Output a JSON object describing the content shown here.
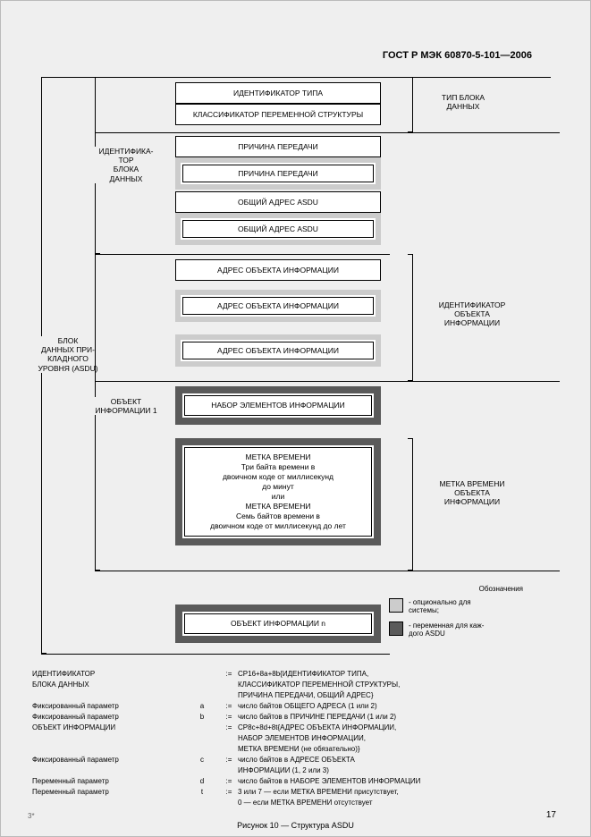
{
  "header": "ГОСТ Р МЭК 60870-5-101—2006",
  "labels": {
    "asdu": "БЛОК\nДАННЫХ ПРИ-\nКЛАДНОГО\nУРОВНЯ (ASDU)",
    "ident": "ИДЕНТИФИКА-\nТОР\nБЛОКА\nДАННЫХ",
    "obj1": "ОБЪЕКТ\nИНФОРМАЦИИ 1",
    "typeblock": "ТИП БЛОКА\nДАННЫХ",
    "identobj": "ИДЕНТИФИКАТОР\nОБЪЕКТА\nИНФОРМАЦИИ",
    "timelabel": "МЕТКА ВРЕМЕНИ\nОБЪЕКТА\nИНФОРМАЦИИ"
  },
  "boxes": {
    "b1": "ИДЕНТИФИКАТОР ТИПА",
    "b2": "КЛАССИФИКАТОР\nПЕРЕМЕННОЙ СТРУКТУРЫ",
    "b3": "ПРИЧИНА ПЕРЕДАЧИ",
    "b3o": "ПРИЧИНА ПЕРЕДАЧИ",
    "b4": "ОБЩИЙ АДРЕС ASDU",
    "b4o": "ОБЩИЙ АДРЕС ASDU",
    "b5": "АДРЕС ОБЪЕКТА\nИНФОРМАЦИИ",
    "b5o1": "АДРЕС ОБЪЕКТА\nИНФОРМАЦИИ",
    "b5o2": "АДРЕС ОБЪЕКТА\nИНФОРМАЦИИ",
    "b6": "НАБОР ЭЛЕМЕНТОВ\nИНФОРМАЦИИ",
    "b7": "МЕТКА ВРЕМЕНИ\nТри байта времени в\nдвоичном коде от миллисекунд\nдо минут\nили\nМЕТКА ВРЕМЕНИ\nСемь байтов времени в\nдвоичном коде от миллисекунд до лет",
    "b8": "ОБЪЕКТ ИНФОРМАЦИИ n"
  },
  "legend": {
    "title": "Обозначения",
    "opt": "- опционально для\n  системы;",
    "var": "- переменная для каж-\n  дого ASDU",
    "colors": {
      "opt": "#cccccc",
      "var": "#5a5a5a"
    }
  },
  "defs": [
    {
      "term": "ИДЕНТИФИКАТОР",
      "sym": "",
      "eq": ":=",
      "desc": "CP16+8a+8b{ИДЕНТИФИКАТОР ТИПА,"
    },
    {
      "term": "БЛОКА ДАННЫХ",
      "sym": "",
      "eq": "",
      "desc": "КЛАССИФИКАТОР ПЕРЕМЕННОЙ СТРУКТУРЫ,"
    },
    {
      "term": "",
      "sym": "",
      "eq": "",
      "desc": "ПРИЧИНА ПЕРЕДАЧИ, ОБЩИЙ АДРЕС}"
    },
    {
      "term": "Фиксированный параметр",
      "sym": "a",
      "eq": ":=",
      "desc": "число байтов ОБЩЕГО АДРЕСА (1 или 2)"
    },
    {
      "term": "Фиксированный параметр",
      "sym": "b",
      "eq": ":=",
      "desc": "число байтов в ПРИЧИНЕ ПЕРЕДАЧИ (1 или 2)"
    },
    {
      "term": "ОБЪЕКТ ИНФОРМАЦИИ",
      "sym": "",
      "eq": ":=",
      "desc": "CP8c+8d+8t{АДРЕС ОБЪЕКТА ИНФОРМАЦИИ,"
    },
    {
      "term": "",
      "sym": "",
      "eq": "",
      "desc": "НАБОР ЭЛЕМЕНТОВ ИНФОРМАЦИИ,"
    },
    {
      "term": "",
      "sym": "",
      "eq": "",
      "desc": "МЕТКА ВРЕМЕНИ (не обязательно)}"
    },
    {
      "term": "Фиксированный параметр",
      "sym": "c",
      "eq": ":=",
      "desc": "число байтов в АДРЕСЕ ОБЪЕКТА"
    },
    {
      "term": "",
      "sym": "",
      "eq": "",
      "desc": "ИНФОРМАЦИИ (1, 2 или 3)"
    },
    {
      "term": "Переменный параметр",
      "sym": "d",
      "eq": ":=",
      "desc": "число байтов в НАБОРЕ ЭЛЕМЕНТОВ ИНФОРМАЦИИ"
    },
    {
      "term": "Переменный параметр",
      "sym": "t",
      "eq": ":=",
      "desc": "3 или 7 — если МЕТКА ВРЕМЕНИ присутствует,"
    },
    {
      "term": "",
      "sym": "",
      "eq": "",
      "desc": "0 — если МЕТКА ВРЕМЕНИ отсутствует"
    }
  ],
  "caption": "Рисунок 10 — Структура ASDU",
  "pagenum": "17",
  "sigmark": "3*"
}
